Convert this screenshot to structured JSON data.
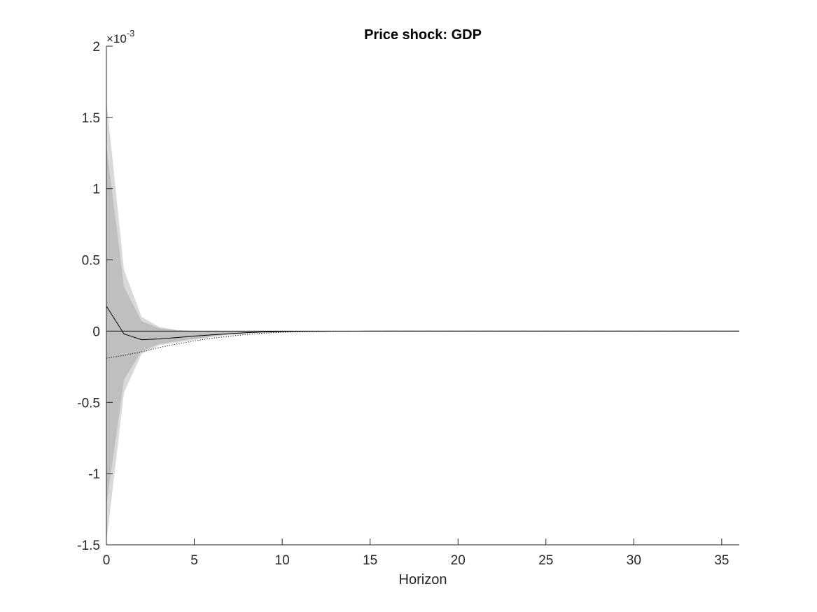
{
  "chart_data": {
    "type": "area",
    "title": "Price shock: GDP",
    "xlabel": "Horizon",
    "ylabel": "",
    "xlim": [
      0,
      36
    ],
    "ylim": [
      -0.0015,
      0.002
    ],
    "y_scale_exponent_label": "×10",
    "y_scale_exponent_power": "-3",
    "grid": false,
    "xticks": [
      0,
      5,
      10,
      15,
      20,
      25,
      30,
      35
    ],
    "xtick_labels": [
      "0",
      "5",
      "10",
      "15",
      "20",
      "25",
      "30",
      "35"
    ],
    "yticks": [
      -0.0015,
      -0.001,
      -0.0005,
      0,
      0.0005,
      0.001,
      0.0015,
      0.002
    ],
    "ytick_labels": [
      "-1.5",
      "-1",
      "-0.5",
      "0",
      "0.5",
      "1",
      "1.5",
      "2"
    ],
    "x": [
      0,
      1,
      2,
      3,
      4,
      5,
      6,
      7,
      8,
      9,
      10,
      11,
      12,
      13,
      14,
      15,
      16,
      17,
      18,
      19,
      20,
      21,
      22,
      23,
      24,
      25,
      26,
      27,
      28,
      29,
      30,
      31,
      32,
      33,
      34,
      35,
      36
    ],
    "colors": {
      "outer_band": "#d9d9d9",
      "inner_band": "#bfbfbf",
      "median": "#000000",
      "dotted": "#000000",
      "zero_line": "#000000"
    },
    "bands": [
      {
        "role": "outer",
        "upper": [
          0.00162,
          0.00043,
          0.0001,
          3e-05,
          8e-06,
          2e-06,
          5e-07,
          1e-07,
          0,
          0,
          0,
          0,
          0,
          0,
          0,
          0,
          0,
          0,
          0,
          0,
          0,
          0,
          0,
          0,
          0,
          0,
          0,
          0,
          0,
          0,
          0,
          0,
          0,
          0,
          0,
          0,
          0
        ],
        "lower": [
          -0.00148,
          -0.00043,
          -0.00016,
          -0.0001,
          -8e-05,
          -6e-05,
          -4e-05,
          -2.5e-05,
          -1.5e-05,
          -9e-06,
          -5e-06,
          -3e-06,
          -1.5e-06,
          -7e-07,
          -3e-07,
          -1e-07,
          0,
          0,
          0,
          0,
          0,
          0,
          0,
          0,
          0,
          0,
          0,
          0,
          0,
          0,
          0,
          0,
          0,
          0,
          0,
          0,
          0
        ]
      },
      {
        "role": "inner",
        "upper": [
          0.0013,
          0.00031,
          7e-05,
          2e-05,
          5e-06,
          1e-06,
          0,
          0,
          0,
          0,
          0,
          0,
          0,
          0,
          0,
          0,
          0,
          0,
          0,
          0,
          0,
          0,
          0,
          0,
          0,
          0,
          0,
          0,
          0,
          0,
          0,
          0,
          0,
          0,
          0,
          0,
          0
        ],
        "lower": [
          -0.00122,
          -0.00034,
          -0.00014,
          -9e-05,
          -7e-05,
          -5.5e-05,
          -3.7e-05,
          -2.3e-05,
          -1.4e-05,
          -8e-06,
          -4.5e-06,
          -2.5e-06,
          -1.2e-06,
          -6e-07,
          -2e-07,
          -1e-07,
          0,
          0,
          0,
          0,
          0,
          0,
          0,
          0,
          0,
          0,
          0,
          0,
          0,
          0,
          0,
          0,
          0,
          0,
          0,
          0,
          0
        ]
      }
    ],
    "series": [
      {
        "style": "solid",
        "values": [
          0.000175,
          -2e-05,
          -6e-05,
          -5.5e-05,
          -4.5e-05,
          -3.5e-05,
          -2.6e-05,
          -1.8e-05,
          -1.1e-05,
          -6e-06,
          -3e-06,
          -1.5e-06,
          -7e-07,
          -3e-07,
          -1e-07,
          0,
          0,
          0,
          0,
          0,
          0,
          0,
          0,
          0,
          0,
          0,
          0,
          0,
          0,
          0,
          0,
          0,
          0,
          0,
          0,
          0,
          0
        ]
      },
      {
        "style": "dotted",
        "values": [
          -0.00019,
          -0.00017,
          -0.000145,
          -0.000115,
          -9e-05,
          -6.8e-05,
          -5e-05,
          -3.5e-05,
          -2.3e-05,
          -1.4e-05,
          -8e-06,
          -4.5e-06,
          -2.5e-06,
          -1.2e-06,
          -6e-07,
          -2e-07,
          0,
          0,
          0,
          0,
          0,
          0,
          0,
          0,
          0,
          0,
          0,
          0,
          0,
          0,
          0,
          0,
          0,
          0,
          0,
          0,
          0
        ]
      }
    ],
    "zero_line": 0
  }
}
